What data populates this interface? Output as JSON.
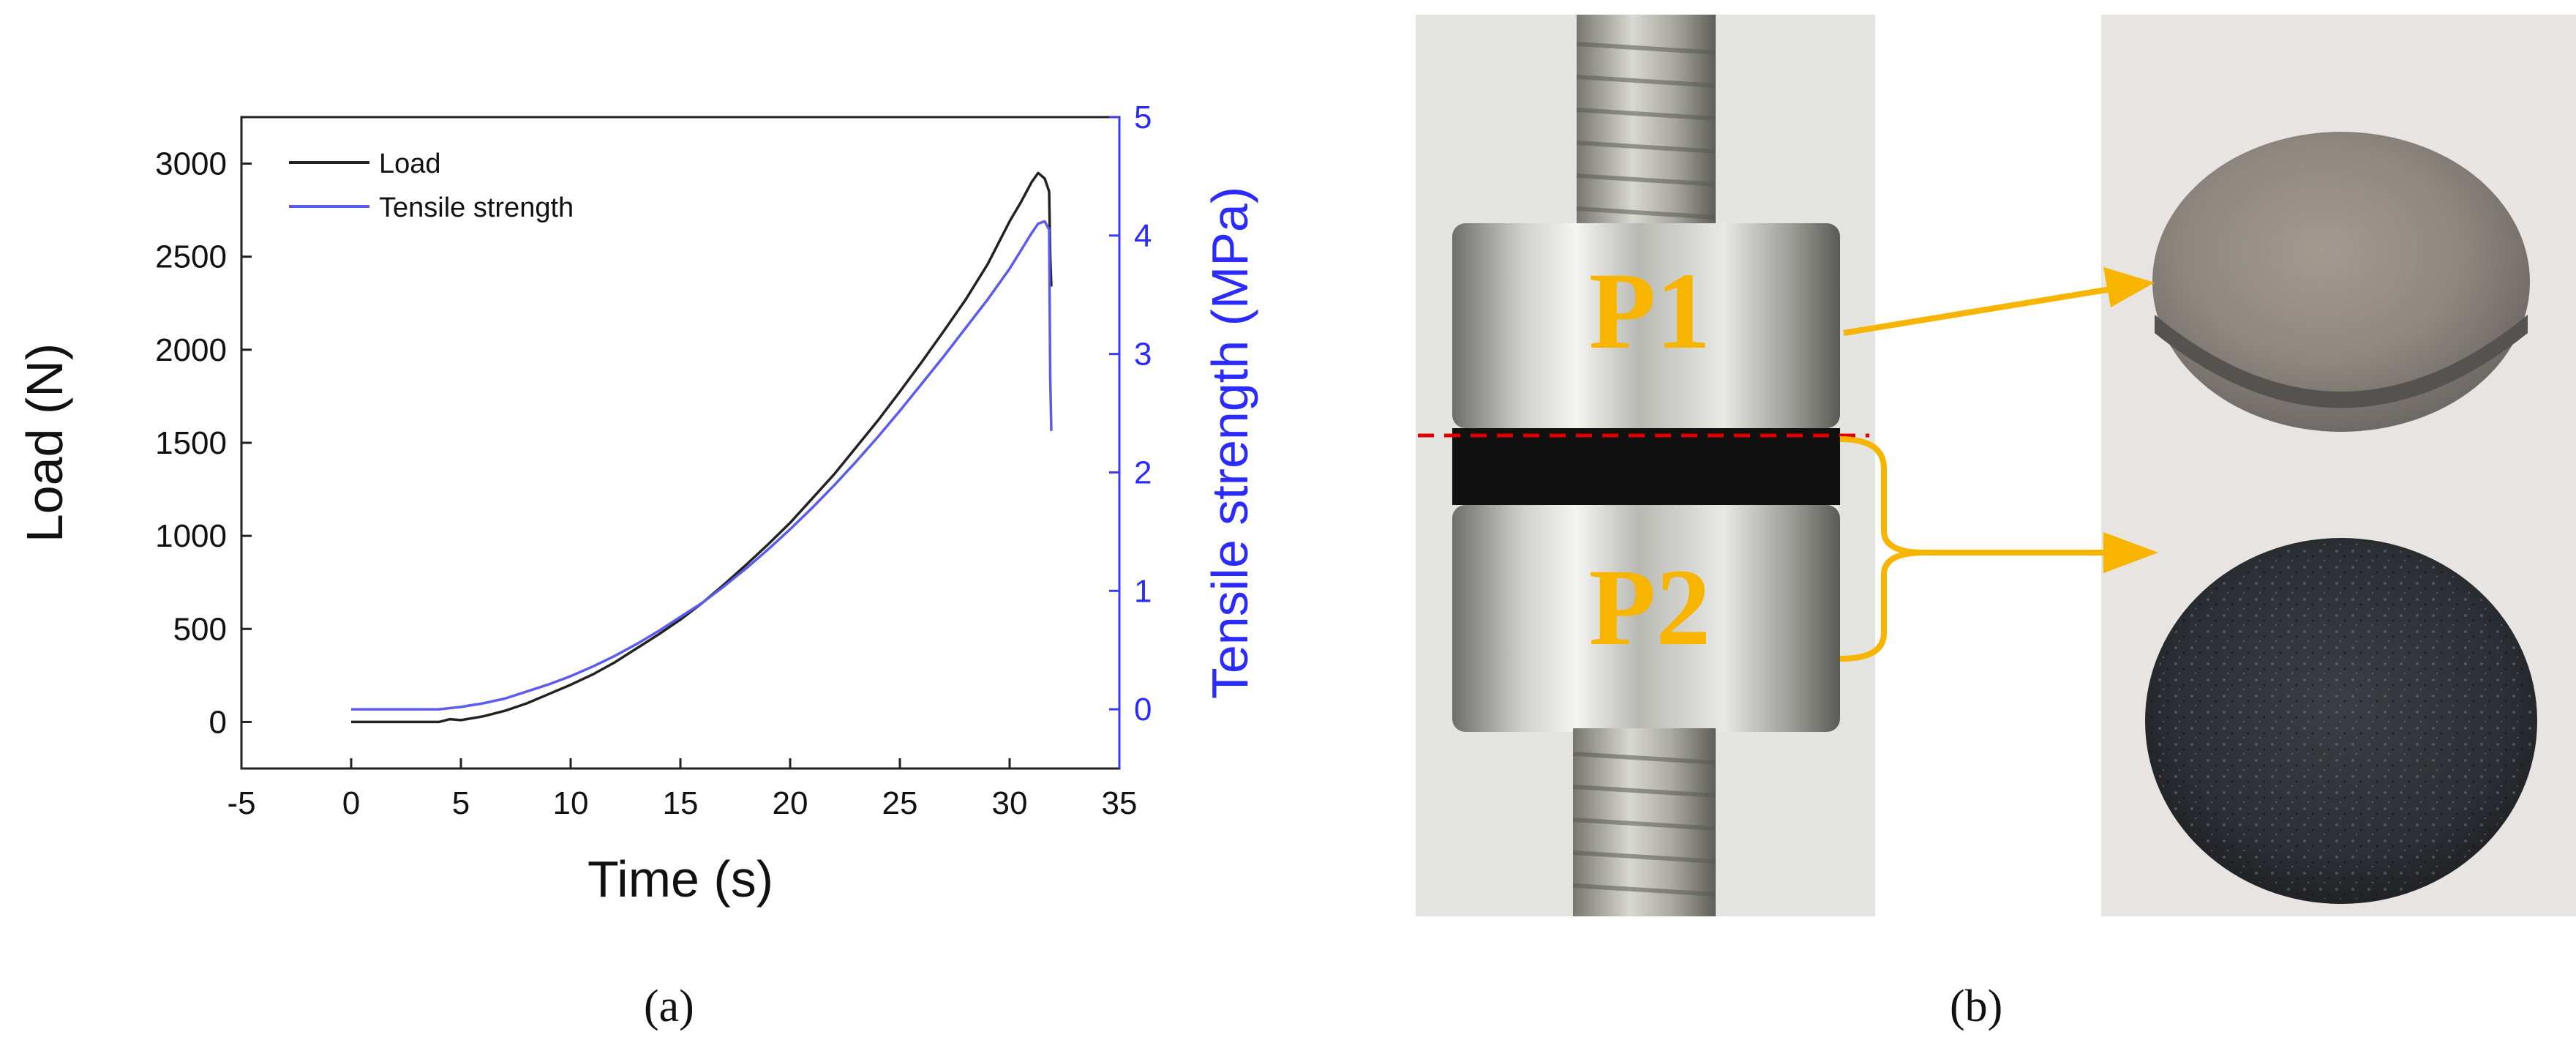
{
  "chart_data": {
    "type": "line",
    "xlabel": "Time (s)",
    "ylabel": "Load (N)",
    "y2label": "Tensile strength (MPa)",
    "xlim": [
      -5,
      35
    ],
    "ylim": [
      -250,
      3250
    ],
    "y2lim": [
      -0.5,
      5
    ],
    "xticks": [
      -5,
      0,
      5,
      10,
      15,
      20,
      25,
      30,
      35
    ],
    "yticks": [
      0,
      500,
      1000,
      1500,
      2000,
      2500,
      3000
    ],
    "y2ticks": [
      0,
      1,
      2,
      3,
      4,
      5
    ],
    "grid": false,
    "legend_position": "top-left",
    "series": [
      {
        "name": "Load",
        "axis": "left",
        "color": "#222222",
        "x": [
          0,
          4,
          4.5,
          5,
          6,
          7,
          8,
          9,
          10,
          11,
          12,
          13,
          14,
          15,
          16,
          17,
          18,
          19,
          20,
          21,
          22,
          23,
          24,
          25,
          26,
          27,
          28,
          29,
          30,
          30.5,
          31,
          31.3,
          31.6,
          31.8,
          31.85,
          31.9
        ],
        "y": [
          0,
          0,
          15,
          10,
          30,
          60,
          100,
          150,
          200,
          255,
          320,
          395,
          470,
          550,
          640,
          740,
          845,
          955,
          1070,
          1200,
          1330,
          1475,
          1620,
          1775,
          1935,
          2100,
          2270,
          2460,
          2690,
          2790,
          2900,
          2950,
          2920,
          2850,
          2500,
          2340
        ]
      },
      {
        "name": "Tensile strength",
        "axis": "right",
        "color": "#5b5bf0",
        "x": [
          0,
          4,
          5,
          6,
          7,
          8,
          9,
          10,
          11,
          12,
          13,
          14,
          15,
          16,
          17,
          18,
          19,
          20,
          21,
          22,
          23,
          24,
          25,
          26,
          27,
          28,
          29,
          30,
          30.5,
          31,
          31.3,
          31.6,
          31.8,
          31.85,
          31.9
        ],
        "y": [
          0,
          0,
          0.02,
          0.05,
          0.09,
          0.15,
          0.21,
          0.28,
          0.36,
          0.45,
          0.55,
          0.66,
          0.78,
          0.9,
          1.04,
          1.19,
          1.35,
          1.52,
          1.7,
          1.89,
          2.09,
          2.3,
          2.52,
          2.75,
          2.98,
          3.22,
          3.46,
          3.72,
          3.87,
          4.02,
          4.1,
          4.12,
          4.05,
          2.8,
          2.35
        ]
      }
    ]
  },
  "photos": {
    "specimen_top_label": "P1",
    "specimen_bottom_label": "P2",
    "label_color": "#f7b500",
    "dash_color": "#e00000",
    "arrow_color": "#f7b500"
  },
  "panel_labels": {
    "a": "(a)",
    "b": "(b)"
  }
}
